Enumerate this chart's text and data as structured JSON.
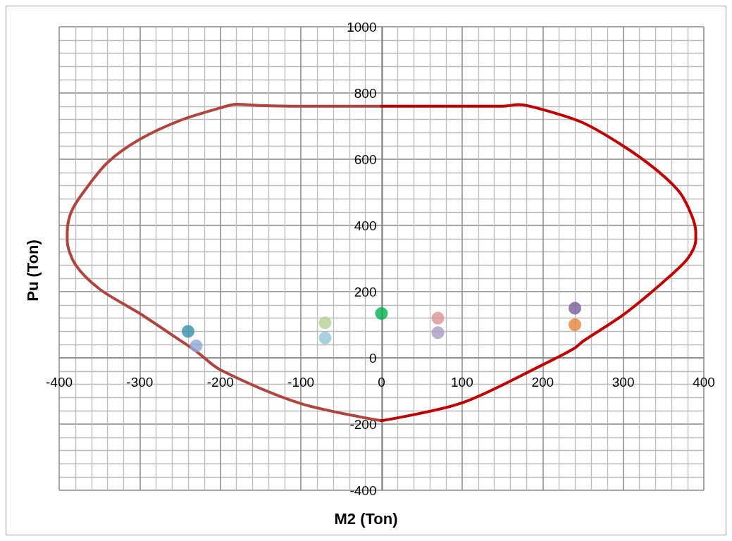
{
  "chart_data": {
    "type": "line",
    "xlabel": "M2 (Ton)",
    "ylabel": "Pu (Ton)",
    "xlim": [
      -400,
      400
    ],
    "xticks": [
      -400,
      -300,
      -200,
      -100,
      0,
      100,
      200,
      300,
      400
    ],
    "ylim": [
      -400,
      1000
    ],
    "yticks": [
      -400,
      -200,
      0,
      200,
      400,
      600,
      800,
      1000
    ],
    "grid": true,
    "marker": "none",
    "line_style": "solid",
    "series": [
      {
        "color": "#b0443f",
        "x": [
          0,
          -100,
          -200,
          -230,
          -250,
          -300,
          -350,
          -380,
          -390,
          -390,
          -385,
          -370,
          -340,
          -300,
          -250,
          -200,
          -180,
          -150,
          -100,
          0
        ],
        "values": [
          -190,
          -138,
          -36,
          20,
          53,
          134,
          208,
          282,
          356,
          380,
          441,
          500,
          590,
          660,
          717,
          755,
          766,
          762,
          760,
          760
        ]
      },
      {
        "color": "#c00000",
        "x": [
          0,
          100,
          200,
          240,
          250,
          300,
          350,
          380,
          390,
          390,
          385,
          370,
          340,
          300,
          250,
          200,
          170,
          150,
          100,
          0
        ],
        "values": [
          -190,
          -136,
          -21,
          30,
          50,
          130,
          230,
          300,
          356,
          380,
          430,
          500,
          570,
          640,
          710,
          750,
          765,
          760,
          760,
          760
        ]
      },
      {
        "type": "scatter",
        "marker": "circle",
        "color": "#3a8ea8",
        "x": [
          -240
        ],
        "values": [
          80
        ]
      },
      {
        "type": "scatter",
        "marker": "circle",
        "color": "#8fa8d6",
        "x": [
          -230
        ],
        "values": [
          36
        ]
      },
      {
        "type": "scatter",
        "marker": "circle",
        "color": "#b8cf96",
        "x": [
          -70
        ],
        "values": [
          106
        ]
      },
      {
        "type": "scatter",
        "marker": "circle",
        "color": "#93c4d6",
        "x": [
          -70
        ],
        "values": [
          60
        ]
      },
      {
        "type": "scatter",
        "marker": "circle",
        "color": "#00b050",
        "x": [
          0
        ],
        "values": [
          134
        ]
      },
      {
        "type": "scatter",
        "marker": "circle",
        "color": "#d99594",
        "x": [
          70
        ],
        "values": [
          120
        ]
      },
      {
        "type": "scatter",
        "marker": "circle",
        "color": "#a99bc4",
        "x": [
          70
        ],
        "values": [
          76
        ]
      },
      {
        "type": "scatter",
        "marker": "circle",
        "color": "#7a5c9a",
        "x": [
          240
        ],
        "values": [
          150
        ]
      },
      {
        "type": "scatter",
        "marker": "circle",
        "color": "#e6843a",
        "x": [
          240
        ],
        "values": [
          100
        ]
      }
    ]
  }
}
